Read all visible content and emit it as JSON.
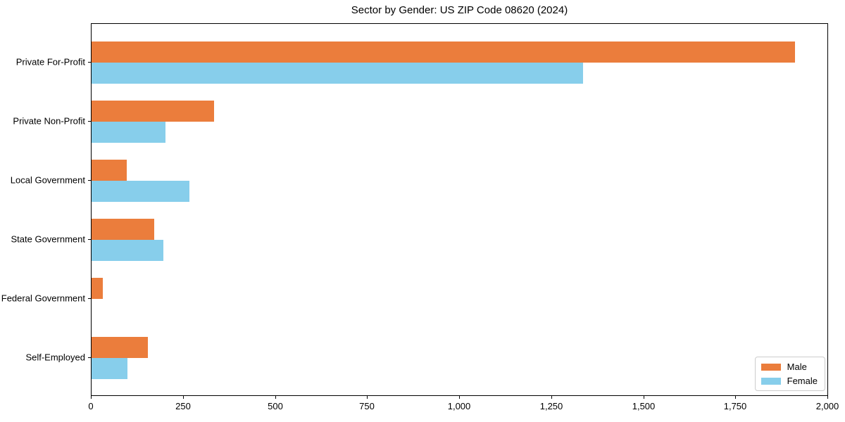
{
  "chart_data": {
    "type": "bar",
    "orientation": "horizontal",
    "title": "Sector by Gender: US ZIP Code 08620 (2024)",
    "categories": [
      "Private For-Profit",
      "Private Non-Profit",
      "Local Government",
      "State Government",
      "Federal Government",
      "Self-Employed"
    ],
    "series": [
      {
        "name": "Male",
        "color": "#eb7d3c",
        "values": [
          1910,
          333,
          96,
          170,
          31,
          153
        ]
      },
      {
        "name": "Female",
        "color": "#87ceeb",
        "values": [
          1335,
          200,
          266,
          195,
          0,
          97
        ]
      }
    ],
    "xlabel": "",
    "ylabel": "",
    "xlim": [
      0,
      2000
    ],
    "x_ticks": [
      0,
      250,
      500,
      750,
      1000,
      1250,
      1500,
      1750,
      2000
    ],
    "x_tick_labels": [
      "0",
      "250",
      "500",
      "750",
      "1,000",
      "1,250",
      "1,500",
      "1,750",
      "2,000"
    ],
    "grid": false,
    "legend": {
      "position": "lower right"
    }
  },
  "colors": {
    "male": "#eb7d3c",
    "female": "#87ceeb",
    "axis": "#000000",
    "legend_border": "#cccccc",
    "background": "#ffffff"
  }
}
